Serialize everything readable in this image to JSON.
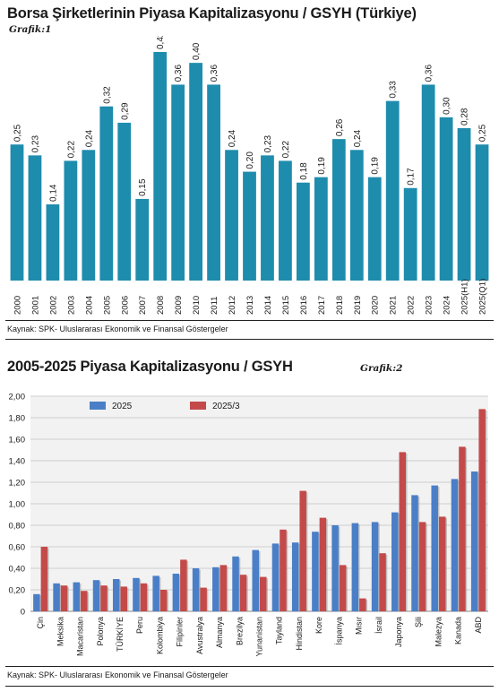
{
  "chart_data": [
    {
      "type": "bar",
      "title": "Borsa Şirketlerinin Piyasa Kapitalizasyonu / GSYH (Türkiye)",
      "subtitle": "Grafik:1",
      "source": "Kaynak: SPK- Uluslararası Ekonomik ve Finansal Göstergeler",
      "categories": [
        "2000",
        "2001",
        "2002",
        "2003",
        "2004",
        "2005",
        "2006",
        "2007",
        "2008",
        "2009",
        "2010",
        "2011",
        "2012",
        "2013",
        "2014",
        "2015",
        "2016",
        "2017",
        "2018",
        "2019",
        "2020",
        "2021",
        "2022",
        "2023",
        "2024",
        "2025(H1)",
        "2025(Q1)"
      ],
      "values": [
        0.25,
        0.23,
        0.14,
        0.22,
        0.24,
        0.32,
        0.29,
        0.15,
        0.42,
        0.36,
        0.4,
        0.36,
        0.24,
        0.2,
        0.23,
        0.22,
        0.18,
        0.19,
        0.26,
        0.24,
        0.19,
        0.33,
        0.17,
        0.36,
        0.3,
        0.28,
        0.25
      ],
      "value_labels": [
        "0,25",
        "0,23",
        "0,14",
        "0,22",
        "0,24",
        "0,32",
        "0,29",
        "0,15",
        "0,42",
        "0,36",
        "0,40",
        "0,36",
        "0,24",
        "0,20",
        "0,23",
        "0,22",
        "0,18",
        "0,19",
        "0,26",
        "0,24",
        "0,19",
        "0,33",
        "0,17",
        "0,36",
        "0,30",
        "0,28",
        "0,25"
      ],
      "ylim": [
        0,
        0.42
      ],
      "grid": false,
      "color": "#1e8cad"
    },
    {
      "type": "bar",
      "title": "2005-2025 Piyasa Kapitalizasyonu / GSYH",
      "subtitle": "Grafik:2",
      "source": "Kaynak: SPK- Uluslararası Ekonomik ve Finansal Göstergeler",
      "categories": [
        "Çin",
        "Meksika",
        "Macaristan",
        "Polonya",
        "TÜRKİYE",
        "Peru",
        "Kolombiya",
        "Filipinler",
        "Avustralya",
        "Almanya",
        "Brezilya",
        "Yunanistan",
        "Tayland",
        "Hindistan",
        "Kore",
        "İspanya",
        "Mısır",
        "İsrail",
        "Japonya",
        "Şili",
        "Malezya",
        "Kanada",
        "ABD"
      ],
      "series": [
        {
          "name": "2025",
          "color": "#4a7fc7",
          "values": [
            0.16,
            0.26,
            0.27,
            0.29,
            0.3,
            0.31,
            0.33,
            0.35,
            0.4,
            0.41,
            0.51,
            0.57,
            0.63,
            0.64,
            0.74,
            0.8,
            0.82,
            0.83,
            0.92,
            1.08,
            1.17,
            1.23,
            1.3
          ]
        },
        {
          "name": "2025/3",
          "color": "#c44a4a",
          "values": [
            0.6,
            0.24,
            0.19,
            0.24,
            0.23,
            0.26,
            0.2,
            0.48,
            0.22,
            0.43,
            0.34,
            0.32,
            0.76,
            1.12,
            0.87,
            0.43,
            0.12,
            0.54,
            1.48,
            0.83,
            0.88,
            1.53,
            1.88
          ]
        }
      ],
      "y_ticks": [
        "0",
        "0,20",
        "0,40",
        "0,60",
        "0,80",
        "1,00",
        "1,20",
        "1,40",
        "1,60",
        "1,80",
        "2,00"
      ],
      "ylim": [
        0,
        2.0
      ],
      "grid": true,
      "legend": "top-left"
    }
  ]
}
